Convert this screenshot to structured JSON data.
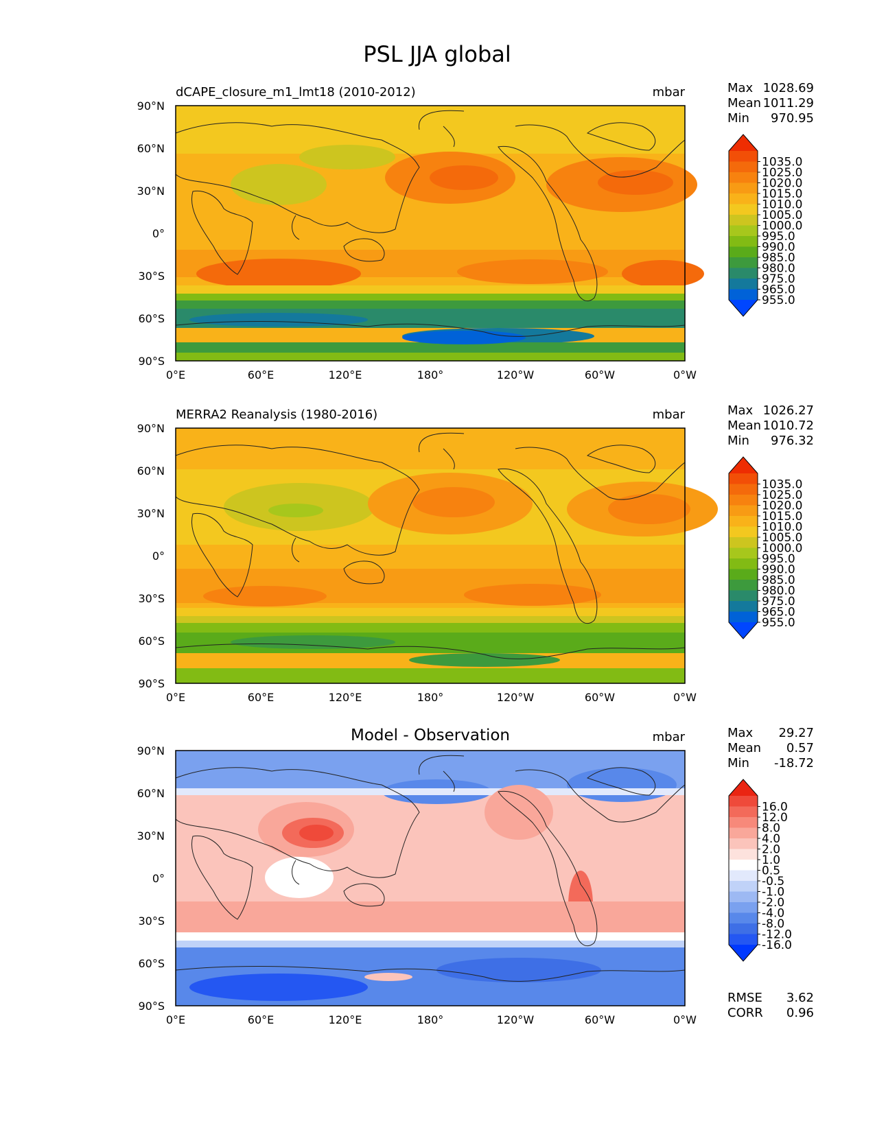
{
  "title": "PSL JJA global",
  "axes": {
    "lat_ticks": [
      "90°N",
      "60°N",
      "30°N",
      "0°",
      "30°S",
      "60°S",
      "90°S"
    ],
    "lon_ticks": [
      "0°E",
      "60°E",
      "120°E",
      "180°",
      "120°W",
      "60°W",
      "0°W"
    ]
  },
  "palettes": {
    "absolute": [
      "#0046ff",
      "#0062d8",
      "#14799c",
      "#2a8a6a",
      "#3d9a3d",
      "#5aab1a",
      "#82bb14",
      "#a7c71c",
      "#cdc51f",
      "#f3c81f",
      "#f9b219",
      "#f89b14",
      "#f7820f",
      "#f46a0b",
      "#f24f07",
      "#ee2d02"
    ],
    "difference": [
      "#0039ff",
      "#2457f2",
      "#3e6fe6",
      "#5888ea",
      "#7aa1ef",
      "#9db9f3",
      "#c0d2f8",
      "#e2e9fc",
      "#ffffff",
      "#fde2dd",
      "#fbc4bb",
      "#f9a79a",
      "#f7897a",
      "#f36a5a",
      "#ef4a3a",
      "#ea2512"
    ]
  },
  "panels": [
    {
      "id": "model",
      "label": "dCAPE_closure_m1_lmt18 (2010-2012)",
      "units": "mbar",
      "stats": {
        "max_label": "Max",
        "max": "1028.69",
        "mean_label": "Mean",
        "mean": "1011.29",
        "min_label": "Min",
        "min": "970.95"
      },
      "colorbar_ticks": [
        "1035.0",
        "1025.0",
        "1020.0",
        "1015.0",
        "1010.0",
        "1005.0",
        "1000.0",
        "995.0",
        "990.0",
        "985.0",
        "980.0",
        "975.0",
        "965.0",
        "955.0"
      ],
      "palette": "absolute"
    },
    {
      "id": "obs",
      "label": "MERRA2 Reanalysis (1980-2016)",
      "units": "mbar",
      "stats": {
        "max_label": "Max",
        "max": "1026.27",
        "mean_label": "Mean",
        "mean": "1010.72",
        "min_label": "Min",
        "min": "976.32"
      },
      "colorbar_ticks": [
        "1035.0",
        "1025.0",
        "1020.0",
        "1015.0",
        "1010.0",
        "1005.0",
        "1000.0",
        "995.0",
        "990.0",
        "985.0",
        "980.0",
        "975.0",
        "965.0",
        "955.0"
      ],
      "palette": "absolute"
    },
    {
      "id": "diff",
      "title": "Model - Observation",
      "units": "mbar",
      "stats": {
        "max_label": "Max",
        "max": "29.27",
        "mean_label": "Mean",
        "mean": "0.57",
        "min_label": "Min",
        "min": "-18.72"
      },
      "colorbar_ticks": [
        "16.0",
        "12.0",
        "8.0",
        "4.0",
        "2.0",
        "1.0",
        "0.5",
        "-0.5",
        "-1.0",
        "-2.0",
        "-4.0",
        "-8.0",
        "-12.0",
        "-16.0"
      ],
      "palette": "difference",
      "metrics": {
        "rmse_label": "RMSE",
        "rmse": "3.62",
        "corr_label": "CORR",
        "corr": "0.96"
      }
    }
  ]
}
